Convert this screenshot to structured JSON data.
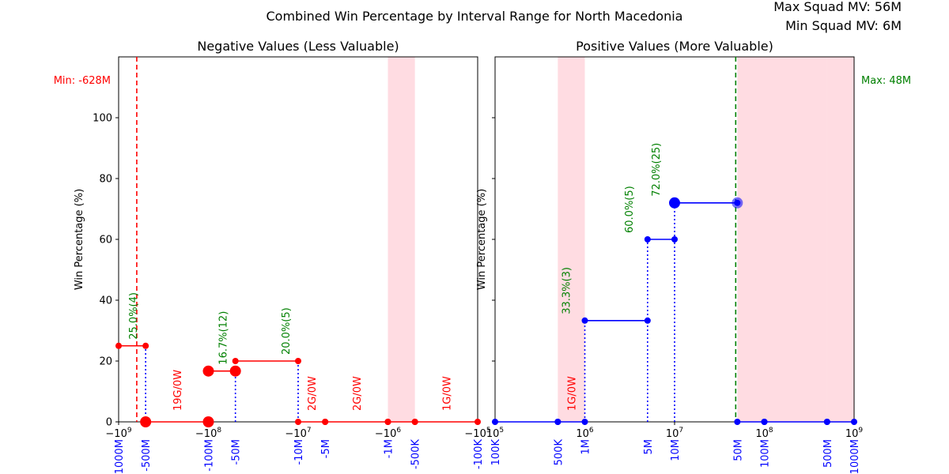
{
  "figure": {
    "title": "Combined Win Percentage by Interval Range for North Macedonia",
    "squad_max": "Max Squad MV: 56M",
    "squad_min": "Min Squad MV: 6M"
  },
  "colors": {
    "negative": "#ff0000",
    "positive": "#0000ff",
    "label_green": "#008000",
    "label_red": "#ff0000",
    "tick_blue": "#0000ff",
    "shade": "#ffc0cb"
  },
  "chart_data": [
    {
      "type": "line",
      "title": "Negative Values (Less Valuable)",
      "xlabel": "",
      "ylabel": "Win Percentage (%)",
      "x_scale": "symlog (negative, log10 of magnitude)",
      "x_range": [
        -1000000000,
        -100000
      ],
      "ylim": [
        0,
        120
      ],
      "y_ticks": [
        0,
        20,
        40,
        60,
        80,
        100
      ],
      "x_ticks": [
        {
          "value": -1000000000,
          "exponent": "9"
        },
        {
          "value": -100000000,
          "exponent": "8"
        },
        {
          "value": -10000000,
          "exponent": "7"
        },
        {
          "value": -1000000,
          "exponent": "6"
        },
        {
          "value": -100000,
          "exponent": "5"
        }
      ],
      "mv_ticks": [
        {
          "value": -1000000000,
          "label": "-1000M"
        },
        {
          "value": -500000000,
          "label": "-500M"
        },
        {
          "value": -100000000,
          "label": "-100M"
        },
        {
          "value": -50000000,
          "label": "-50M"
        },
        {
          "value": -10000000,
          "label": "-10M"
        },
        {
          "value": -5000000,
          "label": "-5M"
        },
        {
          "value": -1000000,
          "label": "-1M"
        },
        {
          "value": -500000,
          "label": "-500K"
        },
        {
          "value": -100000,
          "label": "-100K"
        }
      ],
      "shaded_ranges": [
        [
          -1000000,
          -500000
        ]
      ],
      "reference_line": {
        "value": -628000000,
        "label": "Min: -628M",
        "color": "#ff0000"
      },
      "segments": [
        {
          "x_from": -1000000000,
          "x_to": -500000000,
          "win_pct": 25.0,
          "label": "25.0%(4)",
          "label_color": "green"
        },
        {
          "x_from": -500000000,
          "x_to": -100000000,
          "win_pct": 0,
          "label": "19G/0W",
          "label_color": "red"
        },
        {
          "x_from": -100000000,
          "x_to": -50000000,
          "win_pct": 16.7,
          "label": "16.7%(12)",
          "label_color": "green"
        },
        {
          "x_from": -50000000,
          "x_to": -10000000,
          "win_pct": 20.0,
          "label": "20.0%(5)",
          "label_color": "green"
        },
        {
          "x_from": -10000000,
          "x_to": -5000000,
          "win_pct": 0,
          "label": "2G/0W",
          "label_color": "red"
        },
        {
          "x_from": -5000000,
          "x_to": -1000000,
          "win_pct": 0,
          "label": "2G/0W",
          "label_color": "red"
        },
        {
          "x_from": -1000000,
          "x_to": -500000,
          "win_pct": 0,
          "label": "",
          "label_color": "red"
        },
        {
          "x_from": -500000,
          "x_to": -100000,
          "win_pct": 0,
          "label": "1G/0W",
          "label_color": "red"
        }
      ],
      "big_markers": [
        {
          "x": -500000000,
          "y": 0
        },
        {
          "x": -100000000,
          "y": 16.7
        },
        {
          "x": -100000000,
          "y": 0
        },
        {
          "x": -50000000,
          "y": 16.7
        }
      ]
    },
    {
      "type": "line",
      "title": "Positive Values (More Valuable)",
      "xlabel": "",
      "ylabel": "Win Percentage (%)",
      "x_scale": "log10",
      "x_range": [
        100000,
        1000000000
      ],
      "ylim": [
        0,
        120
      ],
      "y_ticks": [
        0,
        20,
        40,
        60,
        80,
        100
      ],
      "x_ticks": [
        {
          "value": 100000,
          "exponent": "5"
        },
        {
          "value": 1000000,
          "exponent": "6"
        },
        {
          "value": 10000000,
          "exponent": "7"
        },
        {
          "value": 100000000,
          "exponent": "8"
        },
        {
          "value": 1000000000,
          "exponent": "9"
        }
      ],
      "mv_ticks": [
        {
          "value": 100000,
          "label": "100K"
        },
        {
          "value": 500000,
          "label": "500K"
        },
        {
          "value": 1000000,
          "label": "1M"
        },
        {
          "value": 5000000,
          "label": "5M"
        },
        {
          "value": 10000000,
          "label": "10M"
        },
        {
          "value": 50000000,
          "label": "50M"
        },
        {
          "value": 100000000,
          "label": "100M"
        },
        {
          "value": 500000000,
          "label": "500M"
        },
        {
          "value": 1000000000,
          "label": "1000M"
        }
      ],
      "shaded_ranges": [
        [
          500000,
          1000000
        ],
        [
          50000000,
          100000000
        ],
        [
          100000000,
          500000000
        ],
        [
          500000000,
          1000000000
        ]
      ],
      "reference_line": {
        "value": 48000000,
        "label": "Max: 48M",
        "color": "#008000"
      },
      "segments": [
        {
          "x_from": 100000,
          "x_to": 500000,
          "win_pct": 0,
          "label": "",
          "label_color": "red"
        },
        {
          "x_from": 500000,
          "x_to": 1000000,
          "win_pct": 0,
          "label": "1G/0W",
          "label_color": "red"
        },
        {
          "x_from": 1000000,
          "x_to": 5000000,
          "win_pct": 33.3,
          "label": "33.3%(3)",
          "label_color": "green"
        },
        {
          "x_from": 5000000,
          "x_to": 10000000,
          "win_pct": 60.0,
          "label": "60.0%(5)",
          "label_color": "green"
        },
        {
          "x_from": 10000000,
          "x_to": 50000000,
          "win_pct": 72.0,
          "label": "72.0%(25)",
          "label_color": "green"
        },
        {
          "x_from": 50000000,
          "x_to": 100000000,
          "win_pct": 0,
          "label": "",
          "label_color": "red"
        },
        {
          "x_from": 100000000,
          "x_to": 500000000,
          "win_pct": 0,
          "label": "",
          "label_color": "red"
        },
        {
          "x_from": 500000000,
          "x_to": 1000000000,
          "win_pct": 0,
          "label": "",
          "label_color": "red"
        }
      ],
      "big_markers": [
        {
          "x": 10000000,
          "y": 72.0
        },
        {
          "x": 50000000,
          "y": 72.0,
          "faded": true
        }
      ]
    }
  ]
}
